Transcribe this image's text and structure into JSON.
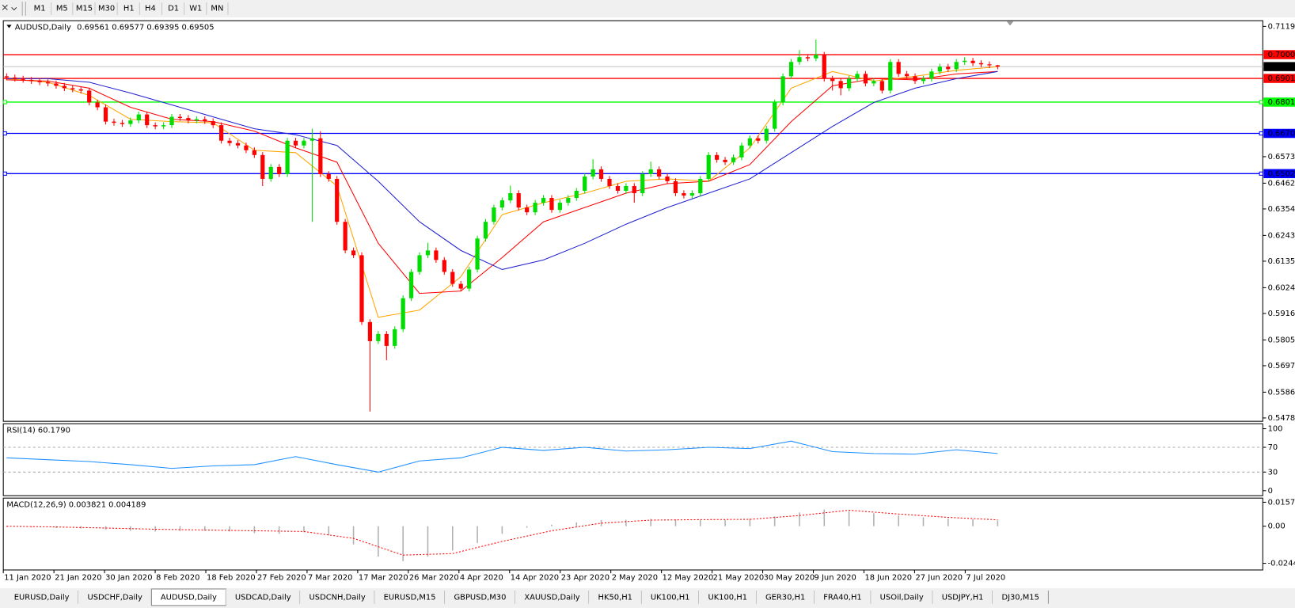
{
  "toolbar": {
    "timeframes": [
      "M1",
      "M5",
      "M15",
      "M30",
      "H1",
      "H4",
      "D1",
      "W1",
      "MN"
    ]
  },
  "chart_data": [
    {
      "type": "candlestick",
      "title": "AUDUSD,Daily",
      "open": [
        0.691,
        0.6905,
        0.69,
        0.6895,
        0.689,
        0.6885,
        0.688,
        0.687,
        0.686,
        0.6855,
        0.685,
        0.68,
        0.678,
        0.672,
        0.6715,
        0.671,
        0.6725,
        0.675,
        0.6705,
        0.67,
        0.6705,
        0.674,
        0.6735,
        0.6725,
        0.673,
        0.6722,
        0.6705,
        0.664,
        0.663,
        0.662,
        0.66,
        0.658,
        0.648,
        0.653,
        0.65,
        0.664,
        0.662,
        0.664,
        0.665,
        0.65,
        0.648,
        0.63,
        0.618,
        0.616,
        0.588,
        0.58,
        0.583,
        0.578,
        0.585,
        0.598,
        0.609,
        0.616,
        0.618,
        0.614,
        0.609,
        0.604,
        0.602,
        0.61,
        0.623,
        0.63,
        0.636,
        0.639,
        0.642,
        0.636,
        0.634,
        0.638,
        0.64,
        0.635,
        0.638,
        0.64,
        0.643,
        0.649,
        0.652,
        0.648,
        0.645,
        0.643,
        0.645,
        0.642,
        0.65,
        0.652,
        0.649,
        0.647,
        0.642,
        0.641,
        0.642,
        0.648,
        0.658,
        0.656,
        0.655,
        0.657,
        0.662,
        0.665,
        0.664,
        0.669,
        0.68,
        0.691,
        0.697,
        0.699,
        0.6985,
        0.7,
        0.69,
        0.689,
        0.686,
        0.69,
        0.692,
        0.688,
        0.689,
        0.685,
        0.697,
        0.692,
        0.691,
        0.689,
        0.69,
        0.693,
        0.695,
        0.694,
        0.697,
        0.6975,
        0.6965,
        0.696,
        0.69561
      ],
      "high": [
        0.6922,
        0.6917,
        0.6912,
        0.6907,
        0.6902,
        0.6897,
        0.6892,
        0.6882,
        0.6872,
        0.6867,
        0.6862,
        0.6812,
        0.6792,
        0.6732,
        0.6727,
        0.6737,
        0.6762,
        0.6762,
        0.6717,
        0.6717,
        0.6752,
        0.6752,
        0.6747,
        0.6742,
        0.6742,
        0.6734,
        0.6717,
        0.6652,
        0.6642,
        0.6632,
        0.6612,
        0.6592,
        0.6542,
        0.6542,
        0.6652,
        0.6652,
        0.6652,
        0.669,
        0.668,
        0.6512,
        0.6492,
        0.6312,
        0.6192,
        0.6172,
        0.5892,
        0.5842,
        0.5842,
        0.5862,
        0.5992,
        0.6102,
        0.6172,
        0.6212,
        0.6192,
        0.6152,
        0.6102,
        0.6052,
        0.6112,
        0.6242,
        0.6312,
        0.6372,
        0.6402,
        0.6452,
        0.6432,
        0.6372,
        0.6392,
        0.6412,
        0.6412,
        0.6392,
        0.6412,
        0.6442,
        0.6502,
        0.6562,
        0.6532,
        0.6492,
        0.6462,
        0.6462,
        0.6462,
        0.6512,
        0.6552,
        0.6532,
        0.6502,
        0.6482,
        0.6432,
        0.6432,
        0.6492,
        0.6592,
        0.6592,
        0.6572,
        0.6582,
        0.6632,
        0.6662,
        0.6662,
        0.6702,
        0.6812,
        0.6922,
        0.6982,
        0.702,
        0.7002,
        0.7064,
        0.7012,
        0.6912,
        0.6902,
        0.6912,
        0.6932,
        0.6932,
        0.6902,
        0.6902,
        0.6982,
        0.6982,
        0.6932,
        0.6922,
        0.6912,
        0.6942,
        0.6962,
        0.6962,
        0.6982,
        0.699,
        0.6987,
        0.6977,
        0.6972,
        0.69577
      ],
      "low": [
        0.6893,
        0.6888,
        0.6883,
        0.6878,
        0.6873,
        0.6868,
        0.6858,
        0.6848,
        0.6843,
        0.6838,
        0.6788,
        0.6768,
        0.6708,
        0.6703,
        0.6698,
        0.6698,
        0.6713,
        0.6693,
        0.6688,
        0.6688,
        0.6693,
        0.6723,
        0.6713,
        0.6713,
        0.671,
        0.6693,
        0.6628,
        0.6618,
        0.6608,
        0.6588,
        0.6568,
        0.645,
        0.6468,
        0.6488,
        0.6488,
        0.6608,
        0.6608,
        0.63,
        0.6488,
        0.6468,
        0.6288,
        0.6168,
        0.6148,
        0.5868,
        0.5505,
        0.5788,
        0.572,
        0.5768,
        0.5838,
        0.5968,
        0.6078,
        0.6148,
        0.6128,
        0.6078,
        0.6028,
        0.6008,
        0.6008,
        0.6088,
        0.6218,
        0.6288,
        0.6348,
        0.6378,
        0.6348,
        0.6328,
        0.6328,
        0.6368,
        0.6338,
        0.6338,
        0.6368,
        0.6388,
        0.6418,
        0.6478,
        0.6468,
        0.6438,
        0.6418,
        0.6418,
        0.638,
        0.6408,
        0.6488,
        0.6478,
        0.6458,
        0.6408,
        0.6398,
        0.6398,
        0.6408,
        0.6468,
        0.6548,
        0.6538,
        0.6538,
        0.6558,
        0.6608,
        0.6628,
        0.6628,
        0.6678,
        0.6788,
        0.6898,
        0.6958,
        0.6973,
        0.6973,
        0.6888,
        0.685,
        0.683,
        0.6848,
        0.6888,
        0.6868,
        0.6868,
        0.6838,
        0.6838,
        0.6908,
        0.6898,
        0.6878,
        0.6878,
        0.6888,
        0.6918,
        0.6928,
        0.6928,
        0.6958,
        0.6953,
        0.6948,
        0.6944,
        0.69395
      ],
      "close": [
        0.6905,
        0.69,
        0.6895,
        0.689,
        0.6885,
        0.688,
        0.687,
        0.686,
        0.6855,
        0.685,
        0.68,
        0.678,
        0.672,
        0.6715,
        0.671,
        0.6725,
        0.675,
        0.6705,
        0.67,
        0.6705,
        0.674,
        0.6735,
        0.6725,
        0.673,
        0.6722,
        0.6705,
        0.664,
        0.663,
        0.662,
        0.66,
        0.658,
        0.648,
        0.653,
        0.65,
        0.664,
        0.662,
        0.664,
        0.665,
        0.65,
        0.648,
        0.63,
        0.618,
        0.616,
        0.588,
        0.58,
        0.583,
        0.578,
        0.585,
        0.598,
        0.609,
        0.616,
        0.618,
        0.614,
        0.609,
        0.604,
        0.602,
        0.61,
        0.623,
        0.63,
        0.636,
        0.639,
        0.642,
        0.636,
        0.634,
        0.638,
        0.64,
        0.635,
        0.638,
        0.64,
        0.643,
        0.649,
        0.652,
        0.648,
        0.645,
        0.643,
        0.645,
        0.642,
        0.65,
        0.652,
        0.649,
        0.647,
        0.642,
        0.641,
        0.642,
        0.648,
        0.658,
        0.656,
        0.655,
        0.657,
        0.662,
        0.665,
        0.664,
        0.669,
        0.68,
        0.691,
        0.697,
        0.699,
        0.6985,
        0.7,
        0.69,
        0.689,
        0.686,
        0.69,
        0.692,
        0.688,
        0.689,
        0.685,
        0.697,
        0.692,
        0.691,
        0.689,
        0.69,
        0.693,
        0.695,
        0.694,
        0.697,
        0.6975,
        0.6965,
        0.696,
        0.6956,
        0.69505
      ],
      "bull_color": "#00dd00",
      "bear_color": "#ff0000",
      "xlim": [
        -0.4,
        152.1
      ],
      "ylim": [
        0.5464,
        0.7143
      ],
      "yticks": [
        {
          "value": 0.7119,
          "label": "0.71190"
        },
        {
          "value": 0.6573,
          "label": "0.65730"
        },
        {
          "value": 0.6462,
          "label": "0.64620"
        },
        {
          "value": 0.6354,
          "label": "0.63540"
        },
        {
          "value": 0.6243,
          "label": "0.62430"
        },
        {
          "value": 0.6135,
          "label": "0.61350"
        },
        {
          "value": 0.6024,
          "label": "0.60240"
        },
        {
          "value": 0.5916,
          "label": "0.59160"
        },
        {
          "value": 0.5805,
          "label": "0.58050"
        },
        {
          "value": 0.5697,
          "label": "0.56970"
        },
        {
          "value": 0.5586,
          "label": "0.55860"
        },
        {
          "value": 0.5478,
          "label": "0.54780"
        }
      ],
      "levels": [
        {
          "value": 0.70007,
          "color": "#ff0000"
        },
        {
          "value": 0.6901,
          "label": "0.69010",
          "color": "#ff0000"
        },
        {
          "value": 0.68017,
          "color": "#00ff00"
        },
        {
          "value": 0.66706,
          "color": "#0000ff"
        },
        {
          "value": 0.6502,
          "label": "0.65020",
          "color": "#0000ff"
        }
      ],
      "current_price_color": "#c0c0c0",
      "moving_averages": [
        {
          "color": "#ffa500",
          "x": [
            0,
            5,
            10,
            15,
            20,
            25,
            30,
            35,
            40,
            45,
            50,
            55,
            60,
            65,
            70,
            75,
            80,
            85,
            90,
            95,
            100,
            105,
            110,
            115,
            120
          ],
          "values": [
            0.69,
            0.6885,
            0.683,
            0.673,
            0.672,
            0.6715,
            0.66,
            0.659,
            0.645,
            0.59,
            0.593,
            0.607,
            0.633,
            0.638,
            0.642,
            0.647,
            0.648,
            0.647,
            0.661,
            0.686,
            0.693,
            0.689,
            0.691,
            0.6935,
            0.695
          ]
        },
        {
          "color": "#ff0000",
          "x": [
            0,
            5,
            10,
            15,
            20,
            25,
            30,
            35,
            40,
            45,
            50,
            55,
            60,
            65,
            70,
            75,
            80,
            85,
            90,
            95,
            100,
            105,
            110,
            115,
            120
          ],
          "values": [
            0.6895,
            0.689,
            0.686,
            0.678,
            0.673,
            0.672,
            0.668,
            0.661,
            0.655,
            0.621,
            0.6,
            0.601,
            0.615,
            0.63,
            0.636,
            0.642,
            0.646,
            0.647,
            0.654,
            0.672,
            0.687,
            0.69,
            0.6895,
            0.692,
            0.693
          ]
        },
        {
          "color": "#2020d0",
          "x": [
            0,
            5,
            10,
            15,
            20,
            25,
            30,
            35,
            40,
            45,
            50,
            55,
            60,
            65,
            70,
            75,
            80,
            85,
            90,
            95,
            100,
            105,
            110,
            115,
            120
          ],
          "values": [
            0.69,
            0.69,
            0.6885,
            0.684,
            0.679,
            0.674,
            0.669,
            0.6665,
            0.662,
            0.647,
            0.63,
            0.618,
            0.61,
            0.614,
            0.621,
            0.629,
            0.636,
            0.642,
            0.648,
            0.659,
            0.67,
            0.68,
            0.686,
            0.69,
            0.693
          ]
        }
      ],
      "x_labels": [
        "11 Jan 2020",
        "21 Jan 2020",
        "30 Jan 2020",
        "8 Feb 2020",
        "18 Feb 2020",
        "27 Feb 2020",
        "7 Mar 2020",
        "17 Mar 2020",
        "26 Mar 2020",
        "4 Apr 2020",
        "14 Apr 2020",
        "23 Apr 2020",
        "2 May 2020",
        "12 May 2020",
        "21 May 2020",
        "30 May 2020",
        "9 Jun 2020",
        "18 Jun 2020",
        "27 Jun 2020",
        "7 Jul 2020"
      ]
    },
    {
      "type": "line",
      "title": "RSI(14) 60.1790",
      "color": "#1e90ff",
      "x": [
        0,
        5,
        10,
        15,
        20,
        25,
        30,
        35,
        40,
        45,
        50,
        55,
        60,
        65,
        70,
        75,
        80,
        85,
        90,
        95,
        100,
        105,
        110,
        115,
        120
      ],
      "values": [
        53,
        50,
        47,
        42,
        36,
        40,
        42,
        55,
        42,
        30,
        48,
        53,
        70,
        65,
        70,
        64,
        66,
        70,
        68,
        80,
        63,
        60,
        59,
        66,
        60
      ],
      "xlim": [
        -0.4,
        152.1
      ],
      "ylim": [
        -8,
        108
      ],
      "yticks": [
        0,
        30,
        70,
        100
      ],
      "levels": [
        30,
        70
      ]
    },
    {
      "type": "macd",
      "title": "MACD(12,26,9) 0.003821 0.004189",
      "histogram": {
        "color": "#b0b0b0",
        "x": [
          0,
          3,
          6,
          9,
          12,
          15,
          18,
          21,
          24,
          27,
          30,
          33,
          36,
          39,
          42,
          45,
          48,
          51,
          54,
          57,
          60,
          63,
          66,
          69,
          72,
          75,
          78,
          81,
          84,
          87,
          90,
          93,
          96,
          99,
          102,
          105,
          108,
          111,
          114,
          117,
          120
        ],
        "values": [
          -0.0005,
          -0.0008,
          -0.0012,
          -0.0015,
          -0.0022,
          -0.003,
          -0.0035,
          -0.0032,
          -0.003,
          -0.0035,
          -0.0045,
          -0.005,
          -0.004,
          -0.006,
          -0.012,
          -0.02,
          -0.023,
          -0.02,
          -0.016,
          -0.011,
          -0.005,
          -0.001,
          0.001,
          0.0025,
          0.004,
          0.0042,
          0.0048,
          0.0045,
          0.004,
          0.0042,
          0.005,
          0.0065,
          0.009,
          0.011,
          0.01,
          0.0085,
          0.007,
          0.0058,
          0.005,
          0.0045,
          0.003821
        ]
      },
      "signal": {
        "color": "#ff0000",
        "x": [
          0,
          6,
          12,
          18,
          24,
          30,
          36,
          42,
          48,
          54,
          60,
          66,
          72,
          78,
          84,
          90,
          96,
          102,
          108,
          114,
          120
        ],
        "values": [
          0.0,
          -0.0005,
          -0.0012,
          -0.002,
          -0.0025,
          -0.003,
          -0.0035,
          -0.008,
          -0.019,
          -0.018,
          -0.01,
          -0.003,
          0.002,
          0.004,
          0.0043,
          0.0045,
          0.007,
          0.0105,
          0.008,
          0.0058,
          0.004189
        ]
      },
      "xlim": [
        -0.4,
        152.1
      ],
      "ylim": [
        -0.02877,
        0.01846
      ],
      "yticks": [
        {
          "value": 0.01574,
          "label": "0.01574"
        },
        {
          "value": 0,
          "label": "0.00"
        },
        {
          "value": -0.02441,
          "label": "-0.02441"
        }
      ]
    }
  ],
  "tabs": {
    "items": [
      "EURUSD,Daily",
      "USDCHF,Daily",
      "AUDUSD,Daily",
      "USDCAD,Daily",
      "USDCNH,Daily",
      "EURUSD,M15",
      "GBPUSD,M30",
      "XAUUSD,Daily",
      "HK50,H1",
      "UK100,H1",
      "UK100,H1",
      "GER30,H1",
      "FRA40,H1",
      "USOil,Daily",
      "USDJPY,H1",
      "DJ30,M15"
    ],
    "active": 2
  }
}
